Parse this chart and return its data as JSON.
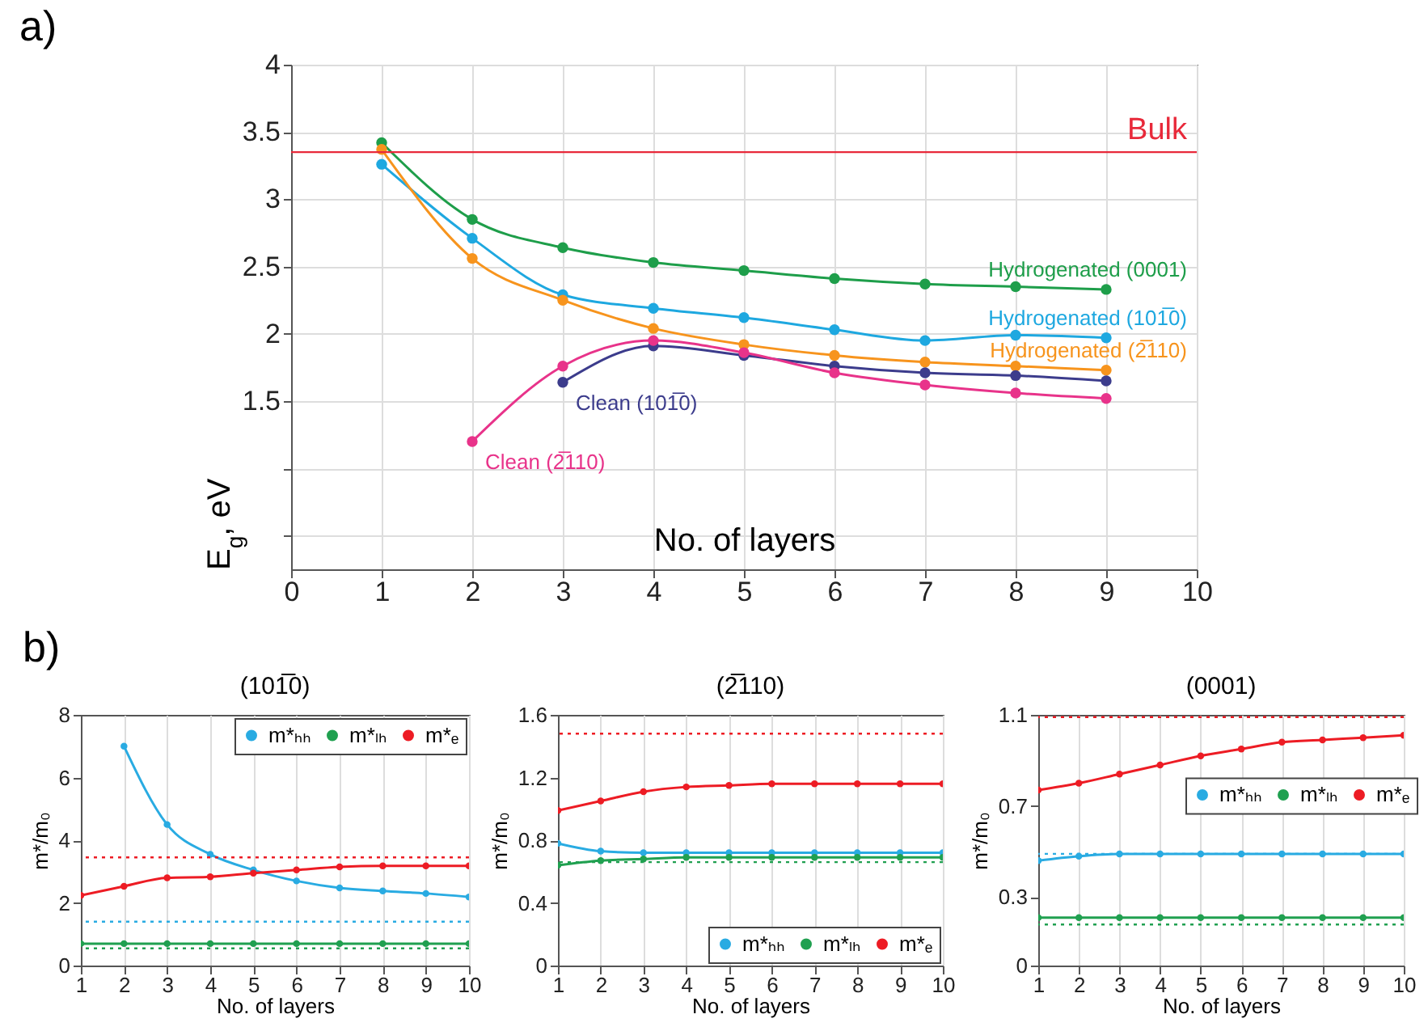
{
  "chart_data": [
    {
      "type": "line",
      "xlabel": "No. of layers",
      "ylabel": "E$_{g}$, eV",
      "x": [
        1,
        2,
        3,
        4,
        5,
        6,
        7,
        8,
        9
      ],
      "xlim": [
        0,
        10
      ],
      "xticks": [
        0,
        1,
        2,
        3,
        4,
        5,
        6,
        7,
        8,
        9,
        10
      ],
      "ylim": [
        0.25,
        4
      ],
      "yticks": [
        {
          "value": 0.5,
          "label": null
        },
        {
          "value": 1,
          "label": null
        },
        1.5,
        2,
        2.5,
        3,
        3.5,
        4
      ],
      "grid": true,
      "legend": false,
      "marker": "circle",
      "line_style": "solid",
      "annotations": [
        "a)"
      ],
      "ref_lines": [
        {
          "axis": "y",
          "value": 3.35,
          "label": "Bulk",
          "color": "#e8293a",
          "line_style": "solid"
        }
      ],
      "series": [
        {
          "name": "Hydrogenated (0001)",
          "color": "#1e9e4a",
          "values": [
            3.42,
            2.85,
            2.64,
            2.53,
            2.47,
            2.41,
            2.37,
            2.35,
            2.33
          ]
        },
        {
          "name": "Hydrogenated (101̅0)",
          "color": "#1ea8e0",
          "values": [
            3.26,
            2.71,
            2.29,
            2.19,
            2.12,
            2.03,
            1.95,
            1.99,
            1.97
          ]
        },
        {
          "name": "Hydrogenated (2̅110)",
          "color": "#f7941d",
          "values": [
            3.37,
            2.56,
            2.25,
            2.04,
            1.92,
            1.84,
            1.79,
            1.76,
            1.73
          ]
        },
        {
          "name": "Clean (101̅0)",
          "color": "#3c3c8c",
          "x": [
            3,
            4,
            5,
            6,
            7,
            8,
            9
          ],
          "values": [
            1.64,
            1.91,
            1.84,
            1.76,
            1.71,
            1.69,
            1.65
          ]
        },
        {
          "name": "Clean (2̅110)",
          "color": "#e8338a",
          "x": [
            2,
            3,
            4,
            5,
            6,
            7,
            8,
            9
          ],
          "values": [
            1.2,
            1.76,
            1.95,
            1.86,
            1.71,
            1.62,
            1.56,
            1.52
          ]
        }
      ]
    },
    {
      "type": "line",
      "title": "(101̅0)",
      "xlabel": "No. of layers",
      "ylabel": "m*/m₀",
      "x": [
        1,
        2,
        3,
        4,
        5,
        6,
        7,
        8,
        9,
        10
      ],
      "xlim": [
        1,
        10
      ],
      "xticks": [
        1,
        2,
        3,
        4,
        5,
        6,
        7,
        8,
        9,
        10
      ],
      "ylim": [
        0,
        8
      ],
      "yticks": [
        0,
        2,
        4,
        6,
        8
      ],
      "grid": "x",
      "legend": "top right",
      "marker": "circle",
      "line_style": "solid",
      "annotations": [
        "b)"
      ],
      "ref_lines": [
        {
          "axis": "y",
          "value": 3.45,
          "color": "#ed1c24",
          "line_style": "dotted"
        },
        {
          "axis": "y",
          "value": 1.4,
          "color": "#29abe2",
          "line_style": "dotted"
        },
        {
          "axis": "y",
          "value": 0.55,
          "color": "#20a050",
          "line_style": "dotted"
        }
      ],
      "series": [
        {
          "name": "m*ₕₕ",
          "color": "#29abe2",
          "values": [
            null,
            7.0,
            4.5,
            3.55,
            3.05,
            2.7,
            2.48,
            2.38,
            2.3,
            2.19
          ]
        },
        {
          "name": "m*ₗₕ",
          "color": "#20a050",
          "values": [
            0.7,
            0.7,
            0.7,
            0.7,
            0.7,
            0.7,
            0.7,
            0.7,
            0.7,
            0.7
          ]
        },
        {
          "name": "m*ₑ",
          "color": "#ed1c24",
          "values": [
            2.24,
            2.53,
            2.8,
            2.83,
            2.95,
            3.05,
            3.15,
            3.18,
            3.18,
            3.18
          ]
        }
      ]
    },
    {
      "type": "line",
      "title": "(2̅110)",
      "xlabel": "No. of layers",
      "ylabel": "m*/m₀",
      "x": [
        1,
        2,
        3,
        4,
        5,
        6,
        7,
        8,
        9,
        10
      ],
      "xlim": [
        1,
        10
      ],
      "xticks": [
        1,
        2,
        3,
        4,
        5,
        6,
        7,
        8,
        9,
        10
      ],
      "ylim": [
        0,
        1.6
      ],
      "yticks": [
        0,
        0.4,
        0.8,
        1.2,
        1.6
      ],
      "grid": "x",
      "legend": "bottom right",
      "marker": "circle",
      "line_style": "solid",
      "ref_lines": [
        {
          "axis": "y",
          "value": 1.48,
          "color": "#ed1c24",
          "line_style": "dotted"
        },
        {
          "axis": "y",
          "value": 0.66,
          "color": "#20a050",
          "line_style": "dotted"
        }
      ],
      "series": [
        {
          "name": "m*ₕₕ",
          "color": "#29abe2",
          "values": [
            0.78,
            0.73,
            0.72,
            0.72,
            0.72,
            0.72,
            0.72,
            0.72,
            0.72,
            0.72
          ]
        },
        {
          "name": "m*ₗₕ",
          "color": "#20a050",
          "values": [
            0.64,
            0.67,
            0.68,
            0.69,
            0.69,
            0.69,
            0.69,
            0.69,
            0.69,
            0.69
          ]
        },
        {
          "name": "m*ₑ",
          "color": "#ed1c24",
          "values": [
            0.99,
            1.05,
            1.11,
            1.14,
            1.15,
            1.16,
            1.16,
            1.16,
            1.16,
            1.16
          ]
        }
      ]
    },
    {
      "type": "line",
      "title": "(0001)",
      "xlabel": "No. of layers",
      "ylabel": "m*/m₀",
      "x": [
        1,
        2,
        3,
        4,
        5,
        6,
        7,
        8,
        9,
        10
      ],
      "xlim": [
        1,
        10
      ],
      "xticks": [
        1,
        2,
        3,
        4,
        5,
        6,
        7,
        8,
        9,
        10
      ],
      "ylim": [
        0,
        1.1
      ],
      "yticks": [
        0,
        0.3,
        0.7,
        1.1
      ],
      "grid": "x",
      "legend": "right",
      "marker": "circle",
      "line_style": "solid",
      "ref_lines": [
        {
          "axis": "y",
          "value": 1.09,
          "color": "#ed1c24",
          "line_style": "dotted"
        },
        {
          "axis": "y",
          "value": 0.49,
          "color": "#29abe2",
          "line_style": "dotted"
        },
        {
          "axis": "y",
          "value": 0.18,
          "color": "#20a050",
          "line_style": "dotted"
        }
      ],
      "series": [
        {
          "name": "m*ₕₕ",
          "color": "#29abe2",
          "values": [
            0.46,
            0.48,
            0.49,
            0.49,
            0.49,
            0.49,
            0.49,
            0.49,
            0.49,
            0.49
          ]
        },
        {
          "name": "m*ₗₕ",
          "color": "#20a050",
          "values": [
            0.21,
            0.21,
            0.21,
            0.21,
            0.21,
            0.21,
            0.21,
            0.21,
            0.21,
            0.21
          ]
        },
        {
          "name": "m*ₑ",
          "color": "#ed1c24",
          "values": [
            0.77,
            0.8,
            0.84,
            0.88,
            0.92,
            0.95,
            0.98,
            0.99,
            1.0,
            1.01
          ]
        }
      ]
    }
  ]
}
